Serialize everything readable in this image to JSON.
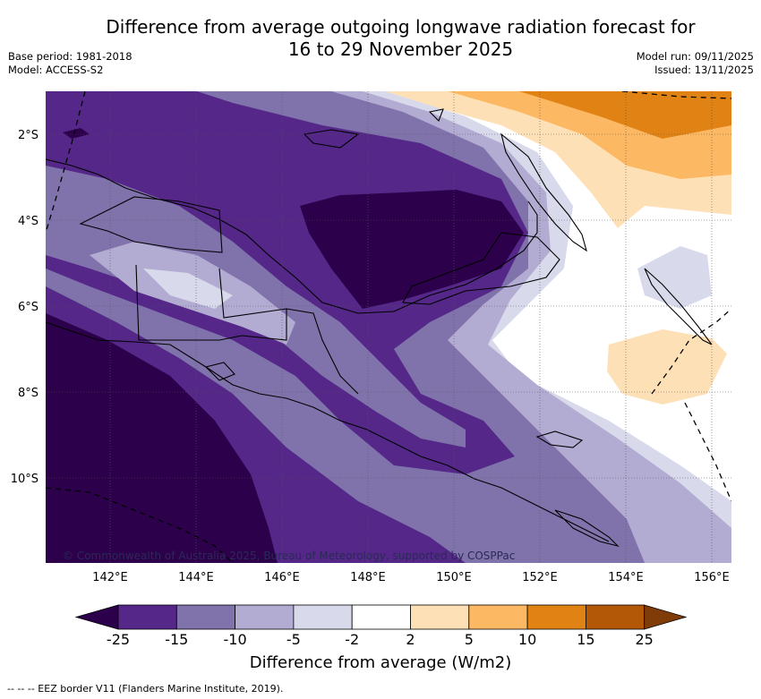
{
  "header": {
    "title_line1": "Difference from average outgoing longwave radiation forecast for",
    "title_line2": "16 to 29 November 2025",
    "base_period": "Base period: 1981-2018",
    "model": "Model: ACCESS-S2",
    "model_run": "Model run: 09/11/2025",
    "issued": "Issued: 13/11/2025"
  },
  "map": {
    "x_ticks": [
      "142°E",
      "144°E",
      "146°E",
      "148°E",
      "150°E",
      "152°E",
      "154°E",
      "156°E"
    ],
    "y_ticks": [
      "2°S",
      "4°S",
      "6°S",
      "8°S",
      "10°S"
    ],
    "copyright": "© Commonwealth of Australia 2025, Bureau of Meteorology, supported by COSPPac"
  },
  "colorbar": {
    "ticks": [
      "-25",
      "-15",
      "-10",
      "-5",
      "-2",
      "2",
      "5",
      "10",
      "15",
      "25"
    ],
    "colors": [
      "#2d004b",
      "#542788",
      "#8073ac",
      "#b2abd2",
      "#d8daeb",
      "#ffffff",
      "#fee0b6",
      "#fdb863",
      "#e08214",
      "#b35806",
      "#7f3b08"
    ],
    "title": "Difference from average (W/m2)"
  },
  "footer": {
    "eez_note": "-- -- -- EEZ border V11 (Flanders Marine Institute, 2019)."
  }
}
